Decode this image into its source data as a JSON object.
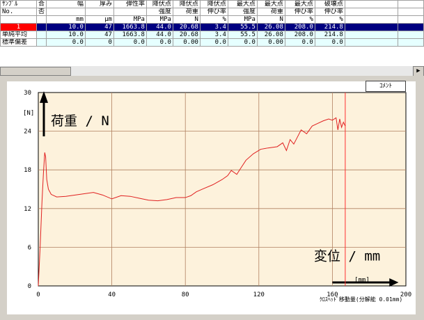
{
  "table": {
    "headers": [
      [
        "ｻﾝﾌﾟﾙ",
        "合",
        "幅",
        "厚み",
        "弾性率",
        "降伏点",
        "降伏点",
        "降伏点",
        "最大点",
        "最大点",
        "最大点",
        "破壊点",
        "",
        ""
      ],
      [
        "No.",
        "否",
        "",
        "",
        "",
        "強度",
        "荷重",
        "伸び率",
        "強度",
        "荷重",
        "伸び率",
        "伸び率",
        "",
        ""
      ],
      [
        "",
        "",
        "mm",
        "μm",
        "MPa",
        "MPa",
        "N",
        "%",
        "MPa",
        "N",
        "%",
        "%",
        "",
        ""
      ]
    ],
    "rows": [
      {
        "label": "1",
        "cells": [
          "",
          "10.0",
          "47",
          "1663.8",
          "44.0",
          "20.68",
          "3.4",
          "55.5",
          "26.08",
          "208.0",
          "214.8",
          "",
          ""
        ]
      },
      {
        "label": "単純平均",
        "cells": [
          "",
          "10.0",
          "47",
          "1663.8",
          "44.0",
          "20.68",
          "3.4",
          "55.5",
          "26.08",
          "208.0",
          "214.8",
          "",
          ""
        ]
      },
      {
        "label": "標準偏差",
        "cells": [
          "",
          "0.0",
          "0",
          "0.0",
          "0.0",
          "0.00",
          "0.0",
          "0.0",
          "0.00",
          "0.0",
          "0.0",
          "",
          ""
        ]
      }
    ]
  },
  "comment_button": "ｺﾒﾝﾄ",
  "chart_data": {
    "type": "line",
    "ylabel": "荷重 / N",
    "xlabel": "変位 / mm",
    "x_unit": "[mm]",
    "footnote": "ｸﾛｽﾍｯﾄﾞ移動量(分解能 0.01mm)",
    "y_unit_left": "[N]",
    "xlim": [
      0,
      200
    ],
    "ylim": [
      0,
      30
    ],
    "xticks": [
      0,
      40,
      80,
      120,
      160,
      200
    ],
    "yticks": [
      0,
      6,
      12,
      18,
      24,
      30
    ],
    "x": [
      0,
      1,
      2,
      2.8,
      3.5,
      4,
      4.6,
      5.5,
      7,
      10,
      15,
      20,
      25,
      30,
      35,
      40,
      45,
      50,
      55,
      60,
      65,
      70,
      75,
      80,
      83,
      86,
      90,
      95,
      100,
      103,
      105,
      108,
      110,
      113,
      117,
      121,
      125,
      130,
      133,
      135,
      137,
      139,
      141,
      143,
      146,
      149,
      152,
      155,
      158,
      160,
      162,
      163,
      164,
      165,
      166,
      167
    ],
    "y": [
      0,
      6,
      13,
      17.5,
      20.7,
      20,
      16.5,
      15,
      14.2,
      13.8,
      13.9,
      14.1,
      14.3,
      14.5,
      14.1,
      13.5,
      14.0,
      13.9,
      13.6,
      13.3,
      13.2,
      13.4,
      13.7,
      13.7,
      14.0,
      14.6,
      15.1,
      15.7,
      16.5,
      17.1,
      17.9,
      17.3,
      18.2,
      19.5,
      20.5,
      21.2,
      21.4,
      21.6,
      22.2,
      21.0,
      22.7,
      22.0,
      23.1,
      24.2,
      23.6,
      24.8,
      25.2,
      25.6,
      25.9,
      25.7,
      26.08,
      24.2,
      25.9,
      24.6,
      25.4,
      24.8
    ],
    "cursor_x": 167
  }
}
